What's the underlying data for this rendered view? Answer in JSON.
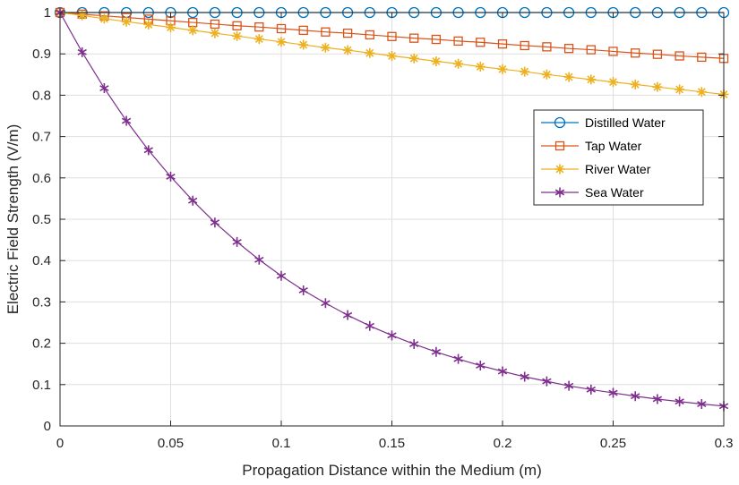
{
  "chart_data": {
    "type": "line",
    "xlabel": "Propagation Distance within the Medium (m)",
    "ylabel": "Electric Field Strength (V/m)",
    "xlim": [
      0,
      0.3
    ],
    "ylim": [
      0,
      1
    ],
    "x_ticks": [
      0,
      0.05,
      0.1,
      0.15,
      0.2,
      0.25,
      0.3
    ],
    "x_tick_labels": [
      "0",
      "0.05",
      "0.1",
      "0.15",
      "0.2",
      "0.25",
      "0.3"
    ],
    "y_ticks": [
      0,
      0.1,
      0.2,
      0.3,
      0.4,
      0.5,
      0.6,
      0.7,
      0.8,
      0.9,
      1
    ],
    "y_tick_labels": [
      "0",
      "0.1",
      "0.2",
      "0.3",
      "0.4",
      "0.5",
      "0.6",
      "0.7",
      "0.8",
      "0.9",
      "1"
    ],
    "grid": true,
    "legend_position": "right",
    "x": [
      0,
      0.01,
      0.02,
      0.03,
      0.04,
      0.05,
      0.06,
      0.07,
      0.08,
      0.09,
      0.1,
      0.11,
      0.12,
      0.13,
      0.14,
      0.15,
      0.16,
      0.17,
      0.18,
      0.19,
      0.2,
      0.21,
      0.22,
      0.23,
      0.24,
      0.25,
      0.26,
      0.27,
      0.28,
      0.29,
      0.3
    ],
    "series": [
      {
        "name": "Distilled Water",
        "color": "#0072BD",
        "marker": "circle",
        "values": [
          1,
          1,
          1,
          1,
          1,
          1,
          1,
          1,
          1,
          1,
          1,
          1,
          1,
          1,
          1,
          1,
          1,
          1,
          1,
          1,
          1,
          1,
          1,
          1,
          1,
          1,
          1,
          1,
          1,
          1,
          1
        ]
      },
      {
        "name": "Tap Water",
        "color": "#D95319",
        "marker": "square",
        "values": [
          1,
          0.996,
          0.992,
          0.988,
          0.984,
          0.98,
          0.976,
          0.972,
          0.968,
          0.965,
          0.961,
          0.957,
          0.953,
          0.95,
          0.946,
          0.942,
          0.938,
          0.935,
          0.931,
          0.928,
          0.924,
          0.92,
          0.917,
          0.913,
          0.91,
          0.906,
          0.902,
          0.899,
          0.895,
          0.892,
          0.889
        ]
      },
      {
        "name": "River Water",
        "color": "#EDB120",
        "marker": "star",
        "values": [
          1,
          0.993,
          0.985,
          0.978,
          0.971,
          0.964,
          0.957,
          0.95,
          0.943,
          0.936,
          0.929,
          0.922,
          0.915,
          0.909,
          0.902,
          0.895,
          0.889,
          0.882,
          0.876,
          0.869,
          0.863,
          0.857,
          0.85,
          0.844,
          0.838,
          0.832,
          0.826,
          0.82,
          0.814,
          0.808,
          0.802
        ]
      },
      {
        "name": "Sea Water",
        "color": "#7E2F8E",
        "marker": "asterisk",
        "values": [
          1,
          0.904,
          0.817,
          0.738,
          0.667,
          0.603,
          0.545,
          0.492,
          0.445,
          0.402,
          0.363,
          0.328,
          0.297,
          0.268,
          0.242,
          0.219,
          0.198,
          0.179,
          0.162,
          0.146,
          0.132,
          0.119,
          0.108,
          0.097,
          0.088,
          0.08,
          0.072,
          0.065,
          0.059,
          0.053,
          0.048
        ]
      }
    ]
  }
}
